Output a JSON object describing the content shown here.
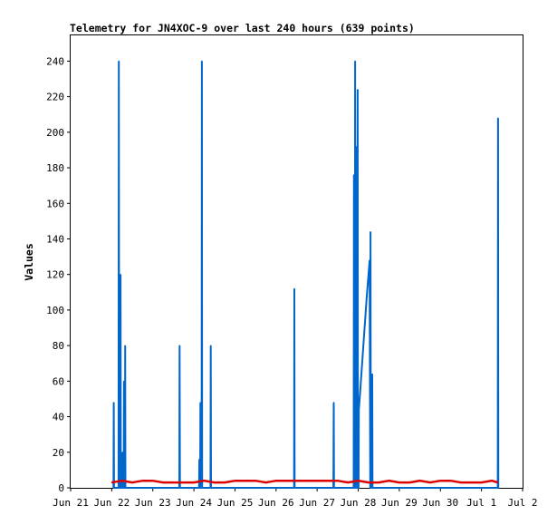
{
  "chart_data": {
    "type": "line",
    "title": "Telemetry for JN4XOC-9 over last 240 hours (639 points)",
    "xlabel": "",
    "ylabel": "Values",
    "xlim": [
      "2021-06-21",
      "2021-07-02"
    ],
    "ylim": [
      0,
      255
    ],
    "x_ticks": [
      "Jun 21",
      "Jun 22",
      "Jun 23",
      "Jun 24",
      "Jun 25",
      "Jun 26",
      "Jun 27",
      "Jun 28",
      "Jun 29",
      "Jun 30",
      "Jul 1",
      "Jul 2"
    ],
    "y_ticks": [
      0,
      20,
      40,
      60,
      80,
      100,
      120,
      140,
      160,
      180,
      200,
      220,
      240
    ],
    "grid": false,
    "legend": "none",
    "series": [
      {
        "color": "#0066cc",
        "points": [
          [
            "2021-06-22 01:00",
            0
          ],
          [
            "2021-06-22 01:10",
            48
          ],
          [
            "2021-06-22 01:20",
            0
          ],
          [
            "2021-06-22 04:00",
            0
          ],
          [
            "2021-06-22 04:10",
            240
          ],
          [
            "2021-06-22 04:20",
            0
          ],
          [
            "2021-06-22 05:00",
            0
          ],
          [
            "2021-06-22 05:10",
            120
          ],
          [
            "2021-06-22 05:20",
            0
          ],
          [
            "2021-06-22 06:10",
            0
          ],
          [
            "2021-06-22 06:20",
            20
          ],
          [
            "2021-06-22 06:30",
            0
          ],
          [
            "2021-06-22 07:00",
            0
          ],
          [
            "2021-06-22 07:10",
            60
          ],
          [
            "2021-06-22 07:20",
            0
          ],
          [
            "2021-06-22 07:40",
            0
          ],
          [
            "2021-06-22 07:50",
            80
          ],
          [
            "2021-06-22 08:00",
            0
          ],
          [
            "2021-06-23 15:30",
            0
          ],
          [
            "2021-06-23 15:40",
            80
          ],
          [
            "2021-06-23 15:50",
            0
          ],
          [
            "2021-06-24 03:00",
            0
          ],
          [
            "2021-06-24 03:10",
            16
          ],
          [
            "2021-06-24 03:20",
            0
          ],
          [
            "2021-06-24 03:40",
            0
          ],
          [
            "2021-06-24 03:50",
            48
          ],
          [
            "2021-06-24 04:00",
            0
          ],
          [
            "2021-06-24 04:30",
            0
          ],
          [
            "2021-06-24 04:40",
            240
          ],
          [
            "2021-06-24 04:50",
            0
          ],
          [
            "2021-06-24 09:40",
            0
          ],
          [
            "2021-06-24 09:50",
            80
          ],
          [
            "2021-06-24 10:00",
            0
          ],
          [
            "2021-06-26 10:30",
            0
          ],
          [
            "2021-06-26 10:40",
            112
          ],
          [
            "2021-06-26 10:50",
            0
          ],
          [
            "2021-06-27 09:30",
            0
          ],
          [
            "2021-06-27 09:40",
            48
          ],
          [
            "2021-06-27 09:50",
            0
          ],
          [
            "2021-06-27 21:20",
            0
          ],
          [
            "2021-06-27 21:30",
            176
          ],
          [
            "2021-06-27 21:40",
            0
          ],
          [
            "2021-06-27 22:00",
            0
          ],
          [
            "2021-06-27 22:10",
            240
          ],
          [
            "2021-06-27 22:20",
            0
          ],
          [
            "2021-06-27 22:30",
            0
          ],
          [
            "2021-06-27 22:40",
            192
          ],
          [
            "2021-06-27 22:50",
            0
          ],
          [
            "2021-06-27 23:00",
            0
          ],
          [
            "2021-06-27 23:10",
            176
          ],
          [
            "2021-06-27 23:20",
            0
          ],
          [
            "2021-06-27 23:30",
            0
          ],
          [
            "2021-06-27 23:40",
            224
          ],
          [
            "2021-06-27 23:50",
            0
          ],
          [
            "2021-06-28 00:10",
            0
          ],
          [
            "2021-06-28 00:20",
            44
          ],
          [
            "2021-06-28 01:00",
            52
          ],
          [
            "2021-06-28 02:00",
            66
          ],
          [
            "2021-06-28 03:00",
            80
          ],
          [
            "2021-06-28 04:00",
            94
          ],
          [
            "2021-06-28 05:00",
            108
          ],
          [
            "2021-06-28 06:00",
            120
          ],
          [
            "2021-06-28 06:40",
            128
          ],
          [
            "2021-06-28 07:00",
            0
          ],
          [
            "2021-06-28 07:10",
            144
          ],
          [
            "2021-06-28 07:20",
            0
          ],
          [
            "2021-06-28 08:00",
            0
          ],
          [
            "2021-06-28 08:10",
            64
          ],
          [
            "2021-06-28 08:20",
            0
          ],
          [
            "2021-07-01 09:30",
            0
          ],
          [
            "2021-07-01 09:40",
            208
          ],
          [
            "2021-07-01 09:50",
            0
          ]
        ]
      },
      {
        "color": "#dd0000",
        "points": [
          [
            "2021-06-22 00:00",
            3
          ],
          [
            "2021-06-22 06:00",
            4
          ],
          [
            "2021-06-22 12:00",
            3
          ],
          [
            "2021-06-22 18:00",
            4
          ],
          [
            "2021-06-23 00:00",
            4
          ],
          [
            "2021-06-23 06:00",
            3
          ],
          [
            "2021-06-23 12:00",
            3
          ],
          [
            "2021-06-23 18:00",
            3
          ],
          [
            "2021-06-24 00:00",
            3
          ],
          [
            "2021-06-24 06:00",
            4
          ],
          [
            "2021-06-24 12:00",
            3
          ],
          [
            "2021-06-24 18:00",
            3
          ],
          [
            "2021-06-25 00:00",
            4
          ],
          [
            "2021-06-25 06:00",
            4
          ],
          [
            "2021-06-25 12:00",
            4
          ],
          [
            "2021-06-25 18:00",
            3
          ],
          [
            "2021-06-26 00:00",
            4
          ],
          [
            "2021-06-26 06:00",
            4
          ],
          [
            "2021-06-26 12:00",
            4
          ],
          [
            "2021-06-26 18:00",
            4
          ],
          [
            "2021-06-27 00:00",
            4
          ],
          [
            "2021-06-27 06:00",
            4
          ],
          [
            "2021-06-27 12:00",
            4
          ],
          [
            "2021-06-27 18:00",
            3
          ],
          [
            "2021-06-28 00:00",
            4
          ],
          [
            "2021-06-28 06:00",
            3
          ],
          [
            "2021-06-28 12:00",
            3
          ],
          [
            "2021-06-28 18:00",
            4
          ],
          [
            "2021-06-29 00:00",
            3
          ],
          [
            "2021-06-29 06:00",
            3
          ],
          [
            "2021-06-29 12:00",
            4
          ],
          [
            "2021-06-29 18:00",
            3
          ],
          [
            "2021-06-30 00:00",
            4
          ],
          [
            "2021-06-30 06:00",
            4
          ],
          [
            "2021-06-30 12:00",
            3
          ],
          [
            "2021-06-30 18:00",
            3
          ],
          [
            "2021-07-01 00:00",
            3
          ],
          [
            "2021-07-01 06:00",
            4
          ],
          [
            "2021-07-01 09:30",
            3
          ]
        ]
      }
    ]
  }
}
